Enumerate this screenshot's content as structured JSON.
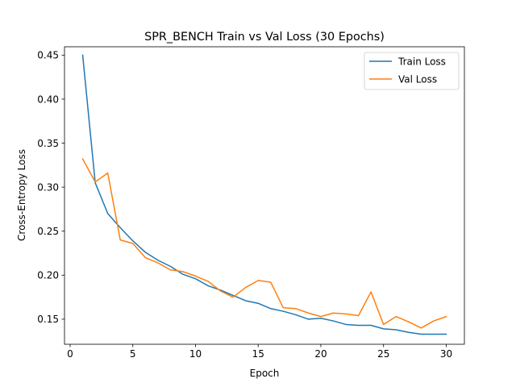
{
  "chart_data": {
    "type": "line",
    "title": "SPR_BENCH Train vs Val Loss (30 Epochs)",
    "xlabel": "Epoch",
    "ylabel": "Cross-Entropy Loss",
    "xlim": [
      -0.45,
      31.45
    ],
    "ylim": [
      0.1215,
      0.4595
    ],
    "xticks": [
      0,
      5,
      10,
      15,
      20,
      25,
      30
    ],
    "yticks": [
      0.15,
      0.2,
      0.25,
      0.3,
      0.35,
      0.4,
      0.45
    ],
    "ytick_labels": [
      "0.15",
      "0.20",
      "0.25",
      "0.30",
      "0.35",
      "0.40",
      "0.45"
    ],
    "grid": false,
    "legend_position": "top-right",
    "x": [
      1,
      2,
      3,
      4,
      5,
      6,
      7,
      8,
      9,
      10,
      11,
      12,
      13,
      14,
      15,
      16,
      17,
      18,
      19,
      20,
      21,
      22,
      23,
      24,
      25,
      26,
      27,
      28,
      29,
      30
    ],
    "series": [
      {
        "name": "Train Loss",
        "color": "#1f77b4",
        "values": [
          0.45,
          0.305,
          0.27,
          0.254,
          0.239,
          0.226,
          0.217,
          0.21,
          0.201,
          0.196,
          0.188,
          0.183,
          0.177,
          0.171,
          0.168,
          0.162,
          0.159,
          0.155,
          0.15,
          0.151,
          0.148,
          0.144,
          0.143,
          0.143,
          0.139,
          0.138,
          0.135,
          0.133,
          0.133,
          0.133
        ]
      },
      {
        "name": "Val Loss",
        "color": "#ff7f0e",
        "values": [
          0.332,
          0.306,
          0.316,
          0.24,
          0.236,
          0.22,
          0.214,
          0.206,
          0.204,
          0.199,
          0.193,
          0.182,
          0.175,
          0.186,
          0.194,
          0.192,
          0.163,
          0.162,
          0.157,
          0.153,
          0.157,
          0.156,
          0.154,
          0.181,
          0.144,
          0.153,
          0.147,
          0.14,
          0.148,
          0.153
        ]
      }
    ]
  }
}
